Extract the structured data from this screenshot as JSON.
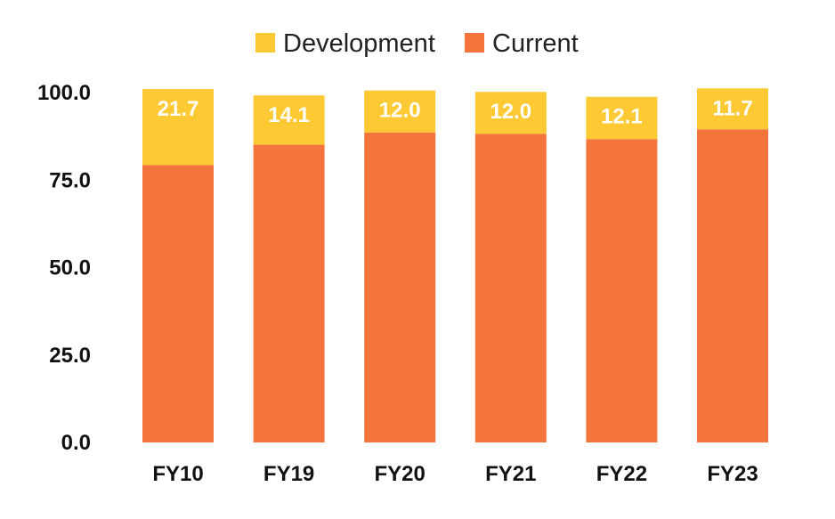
{
  "chart_data": {
    "type": "bar",
    "stacked": true,
    "categories": [
      "FY10",
      "FY19",
      "FY20",
      "FY21",
      "FY22",
      "FY23"
    ],
    "series": [
      {
        "name": "Current",
        "color": "#f4753c",
        "values": [
          79.3,
          85.1,
          88.6,
          88.2,
          86.7,
          89.5
        ]
      },
      {
        "name": "Development",
        "color": "#ffc933",
        "values": [
          21.7,
          14.1,
          12.0,
          12.0,
          12.1,
          11.7
        ]
      }
    ],
    "data_labels": [
      "21.7",
      "14.1",
      "12.0",
      "12.0",
      "12.1",
      "11.7"
    ],
    "ylim": [
      0,
      100
    ],
    "yticks": [
      0,
      25,
      50,
      75,
      100
    ],
    "ytick_labels": [
      "0.0",
      "25.0",
      "50.0",
      "75.0",
      "100.0"
    ],
    "legend": {
      "position": "top",
      "entries": [
        {
          "label": "Development",
          "color": "#ffc933"
        },
        {
          "label": "Current",
          "color": "#f4753c"
        }
      ]
    },
    "grid": false,
    "title": "",
    "xlabel": "",
    "ylabel": ""
  }
}
